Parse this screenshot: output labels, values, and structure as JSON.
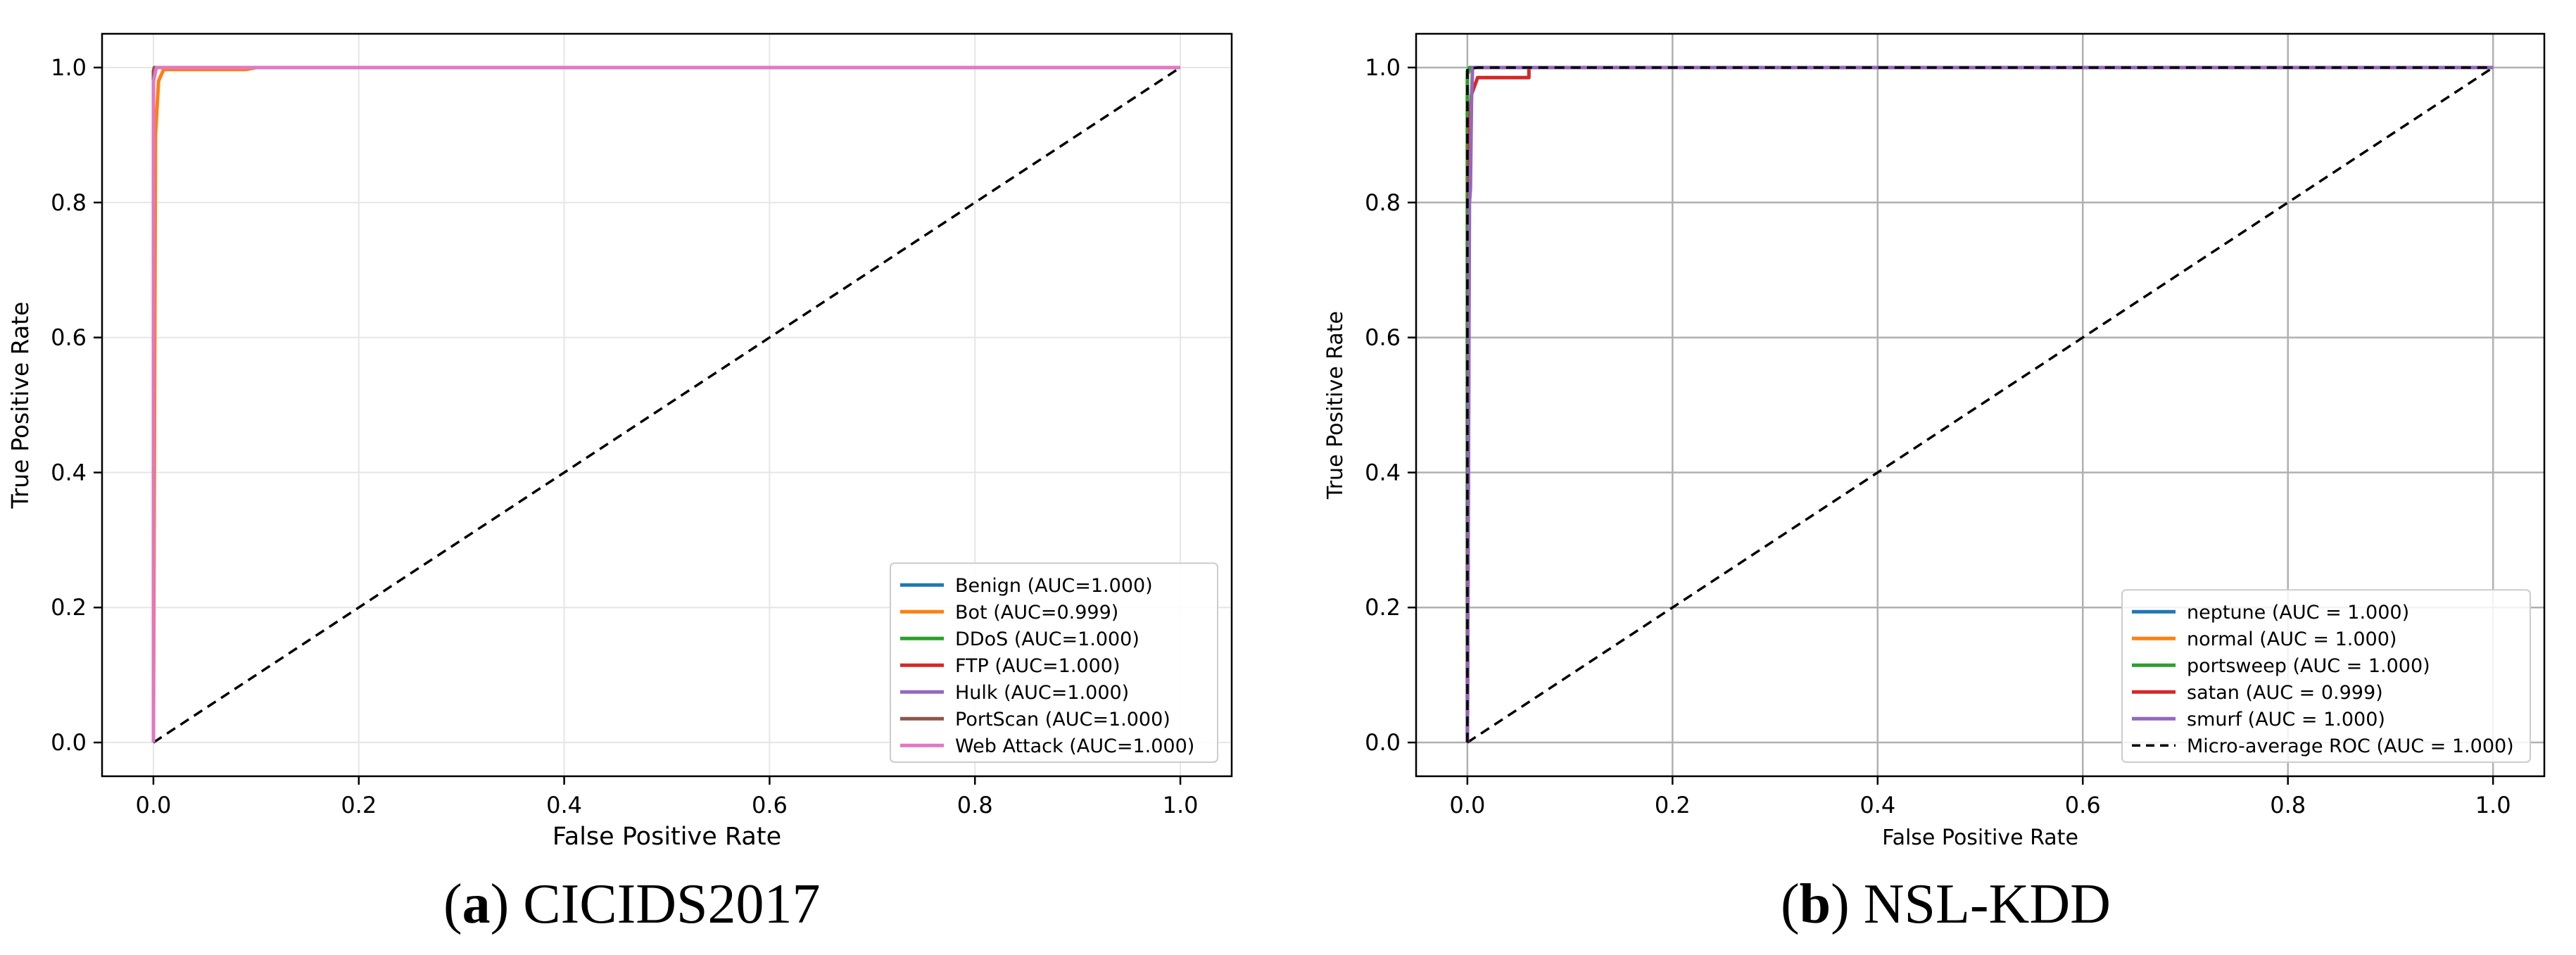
{
  "chart_data": [
    {
      "id": "a",
      "type": "line",
      "caption_letter": "a",
      "caption_text": "CICIDS2017",
      "xlabel": "False Positive Rate",
      "ylabel": "True Positive Rate",
      "xlim": [
        -0.05,
        1.05
      ],
      "ylim": [
        -0.05,
        1.05
      ],
      "xticks": [
        0.0,
        0.2,
        0.4,
        0.6,
        0.8,
        1.0
      ],
      "yticks": [
        0.0,
        0.2,
        0.4,
        0.6,
        0.8,
        1.0
      ],
      "grid": "light",
      "legend_position": "lower-right",
      "series": [
        {
          "name": "Benign (AUC=1.000)",
          "color": "#1f77b4",
          "x": [
            0,
            0,
            0.002,
            1
          ],
          "y": [
            0,
            0.99,
            1,
            1
          ]
        },
        {
          "name": "Bot (AUC=0.999)",
          "color": "#ff7f0e",
          "x": [
            0,
            0.002,
            0.005,
            0.01,
            0.09,
            0.1,
            1
          ],
          "y": [
            0,
            0.9,
            0.98,
            0.997,
            0.997,
            1,
            1
          ]
        },
        {
          "name": "DDoS (AUC=1.000)",
          "color": "#2ca02c",
          "x": [
            0,
            0,
            0.001,
            1
          ],
          "y": [
            0,
            0.99,
            1,
            1
          ]
        },
        {
          "name": "FTP (AUC=1.000)",
          "color": "#d62728",
          "x": [
            0,
            0,
            0.001,
            1
          ],
          "y": [
            0,
            0.995,
            1,
            1
          ]
        },
        {
          "name": "Hulk (AUC=1.000)",
          "color": "#9467bd",
          "x": [
            0,
            0,
            0.002,
            1
          ],
          "y": [
            0,
            0.99,
            1,
            1
          ]
        },
        {
          "name": "PortScan (AUC=1.000)",
          "color": "#8c564b",
          "x": [
            0,
            0,
            0.001,
            1
          ],
          "y": [
            0,
            0.995,
            1,
            1
          ]
        },
        {
          "name": "Web Attack (AUC=1.000)",
          "color": "#e377c2",
          "x": [
            0,
            0,
            0.003,
            1
          ],
          "y": [
            0,
            0.98,
            1,
            1
          ]
        }
      ],
      "diagonal": {
        "x": [
          0,
          1
        ],
        "y": [
          0,
          1
        ],
        "color": "#000000",
        "style": "dashed"
      }
    },
    {
      "id": "b",
      "type": "line",
      "caption_letter": "b",
      "caption_text": "NSL-KDD",
      "xlabel": "False Positive Rate",
      "ylabel": "True Positive Rate",
      "xlim": [
        -0.05,
        1.05
      ],
      "ylim": [
        -0.05,
        1.05
      ],
      "xticks": [
        0.0,
        0.2,
        0.4,
        0.6,
        0.8,
        1.0
      ],
      "yticks": [
        0.0,
        0.2,
        0.4,
        0.6,
        0.8,
        1.0
      ],
      "grid": "strong",
      "legend_position": "lower-right",
      "series": [
        {
          "name": "neptune (AUC = 1.000)",
          "color": "#1f77b4",
          "x": [
            0,
            0,
            0.003,
            1
          ],
          "y": [
            0,
            0.995,
            1,
            1
          ]
        },
        {
          "name": "normal (AUC = 1.000)",
          "color": "#ff7f0e",
          "x": [
            0,
            0,
            0.004,
            1
          ],
          "y": [
            0,
            0.99,
            1,
            1
          ]
        },
        {
          "name": "portsweep (AUC = 1.000)",
          "color": "#2ca02c",
          "x": [
            0,
            0,
            0.002,
            1
          ],
          "y": [
            0,
            0.99,
            1,
            1
          ]
        },
        {
          "name": "satan (AUC = 0.999)",
          "color": "#d62728",
          "x": [
            0,
            0.002,
            0.004,
            0.01,
            0.06,
            0.06,
            1
          ],
          "y": [
            0,
            0.9,
            0.96,
            0.985,
            0.985,
            1,
            1
          ]
        },
        {
          "name": "smurf (AUC = 1.000)",
          "color": "#9467bd",
          "x": [
            0,
            0.002,
            0.003,
            0.004,
            0.005,
            1
          ],
          "y": [
            0,
            0.8,
            0.82,
            0.95,
            1,
            1
          ]
        },
        {
          "name": "Micro-average ROC (AUC = 1.000)",
          "color": "#000000",
          "dashed": true,
          "x": [
            0,
            0,
            0.01,
            1
          ],
          "y": [
            0,
            0.998,
            1,
            1
          ]
        }
      ],
      "diagonal": {
        "x": [
          0,
          1
        ],
        "y": [
          0,
          1
        ],
        "color": "#000000",
        "style": "dashed"
      }
    }
  ]
}
